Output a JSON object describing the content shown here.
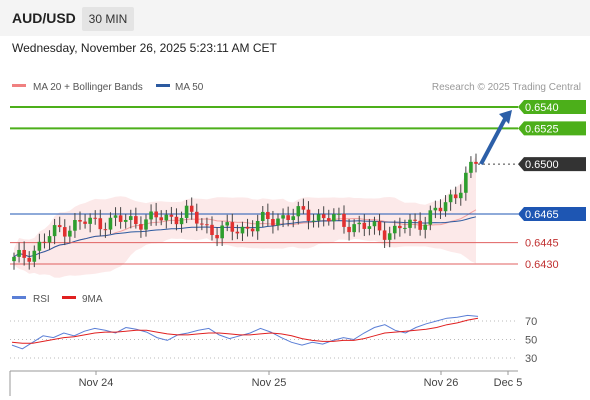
{
  "header": {
    "symbol": "AUD/USD",
    "timeframe": "30 MIN",
    "datetime": "Wednesday, November 26, 2025 5:23:11 AM CET"
  },
  "legend": {
    "ma20_label": "MA 20 + Bollinger Bands",
    "ma50_label": "MA 50",
    "copyright": "Research © 2025 Trading Central",
    "ma20_color": "#f08080",
    "ma50_color": "#2c5aa0"
  },
  "colors": {
    "target_green": "#4caf1a",
    "support_red": "#e06060",
    "pivot_blue": "#1e56b3",
    "arrow_blue": "#2c5fa8",
    "candle_green": "#2e9e2e",
    "candle_red": "#e03030",
    "rsi_blue": "#5b7fd6",
    "rsi_ma_red": "#e02020",
    "band_fill": "#fbe3e3"
  },
  "chart_data": [
    {
      "type": "candlestick",
      "title": "AUD/USD 30 MIN",
      "x_ticks": [
        "Nov 24",
        "Nov 25",
        "Nov 26",
        "Dec 5"
      ],
      "y_range": [
        0.642,
        0.655
      ],
      "levels": [
        {
          "value": 0.654,
          "label": "0.6540",
          "kind": "target"
        },
        {
          "value": 0.6525,
          "label": "0.6525",
          "kind": "target"
        },
        {
          "value": 0.65,
          "label": "0.6500",
          "kind": "current"
        },
        {
          "value": 0.6465,
          "label": "0.6465",
          "kind": "pivot"
        },
        {
          "value": 0.6445,
          "label": "0.6445",
          "kind": "support"
        },
        {
          "value": 0.643,
          "label": "0.6430",
          "kind": "support"
        }
      ],
      "forecast_arrow": {
        "from": 0.65,
        "to": 0.654
      },
      "series": [
        {
          "name": "MA 20 + Bollinger Bands",
          "type": "band"
        },
        {
          "name": "MA 50",
          "type": "line"
        }
      ]
    },
    {
      "type": "line",
      "title": "RSI",
      "series": [
        {
          "name": "RSI",
          "values": [
            44,
            40,
            47,
            54,
            52,
            57,
            54,
            59,
            62,
            60,
            57,
            63,
            61,
            58,
            52,
            49,
            55,
            57,
            60,
            62,
            55,
            51,
            54,
            57,
            62,
            58,
            52,
            47,
            44,
            47,
            45,
            49,
            52,
            50,
            57,
            63,
            66,
            60,
            57,
            63,
            67,
            70,
            73,
            74,
            76,
            75
          ]
        },
        {
          "name": "9MA",
          "values": [
            47,
            46,
            46,
            48,
            50,
            52,
            53,
            55,
            57,
            58,
            58,
            59,
            60,
            60,
            58,
            56,
            55,
            55,
            56,
            57,
            57,
            56,
            55,
            55,
            56,
            57,
            56,
            54,
            51,
            49,
            48,
            48,
            49,
            49,
            51,
            54,
            57,
            58,
            59,
            60,
            61,
            63,
            66,
            68,
            71,
            73
          ]
        }
      ],
      "y_ticks": [
        70,
        50,
        30
      ],
      "y_range": [
        20,
        82
      ]
    }
  ]
}
